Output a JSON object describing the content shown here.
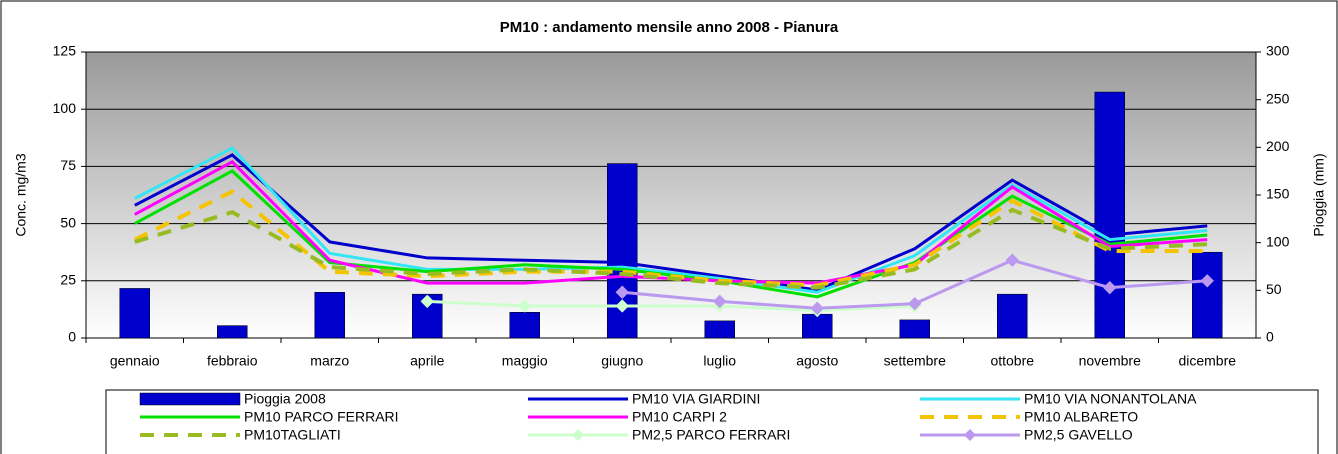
{
  "chart_data": {
    "type": "combo",
    "title": "PM10 : andamento mensile anno 2008 - Pianura",
    "y_label": "Conc. mg/m3",
    "y2_label": "Pioggia (mm)",
    "categories": [
      "gennaio",
      "febbraio",
      "marzo",
      "aprile",
      "maggio",
      "giugno",
      "luglio",
      "agosto",
      "settembre",
      "ottobre",
      "novembre",
      "dicembre"
    ],
    "ylim": [
      0,
      125
    ],
    "yticks": [
      0,
      25,
      50,
      75,
      100,
      125
    ],
    "y2lim": [
      0,
      300
    ],
    "y2ticks": [
      0,
      50,
      100,
      150,
      200,
      250,
      300
    ],
    "grid": true,
    "legend": "bottom",
    "series": [
      {
        "name": "Pioggia 2008",
        "type": "bar",
        "axis": "y2",
        "color": "#0000cc",
        "values": [
          52,
          13,
          48,
          46,
          27,
          183,
          18,
          25,
          19,
          46,
          258,
          90
        ]
      },
      {
        "name": "PM10 VIA GIARDINI",
        "type": "line",
        "color": "#0000cc",
        "values": [
          58,
          80,
          42,
          35,
          34,
          33,
          27,
          21,
          39,
          69,
          45,
          49
        ]
      },
      {
        "name": "PM10 VIA NONANTOLANA",
        "type": "line",
        "color": "#33e6f5",
        "values": [
          61,
          83,
          37,
          30,
          30,
          31,
          26,
          20,
          36,
          67,
          43,
          47
        ]
      },
      {
        "name": "PM10 PARCO FERRARI",
        "type": "line",
        "color": "#00e000",
        "values": [
          50,
          73,
          33,
          29,
          32,
          30,
          25,
          18,
          33,
          62,
          41,
          45
        ]
      },
      {
        "name": "PM10 CARPI 2",
        "type": "line",
        "color": "#ff00ff",
        "values": [
          54,
          77,
          34,
          24,
          24,
          27,
          25,
          24,
          32,
          66,
          40,
          43
        ]
      },
      {
        "name": "PM10 ALBARETO",
        "type": "line",
        "dash": true,
        "color": "#f5c400",
        "values": [
          43,
          64,
          29,
          27,
          29,
          29,
          25,
          23,
          32,
          60,
          38,
          38
        ]
      },
      {
        "name": "PM10TAGLIATI",
        "type": "line",
        "dash": true,
        "color": "#99bb22",
        "values": [
          42,
          55,
          31,
          28,
          30,
          28,
          24,
          22,
          30,
          56,
          39,
          41
        ]
      },
      {
        "name": "PM2,5 PARCO FERRARI",
        "type": "line",
        "marker": "diamond",
        "color": "#ccffcc",
        "values": [
          null,
          null,
          null,
          16,
          14,
          14,
          14,
          12,
          14,
          null,
          null,
          null
        ]
      },
      {
        "name": "PM2,5 GAVELLO",
        "type": "line",
        "marker": "diamond",
        "color": "#bb99ee",
        "values": [
          null,
          null,
          null,
          null,
          null,
          20,
          16,
          13,
          15,
          34,
          22,
          25
        ]
      }
    ]
  }
}
